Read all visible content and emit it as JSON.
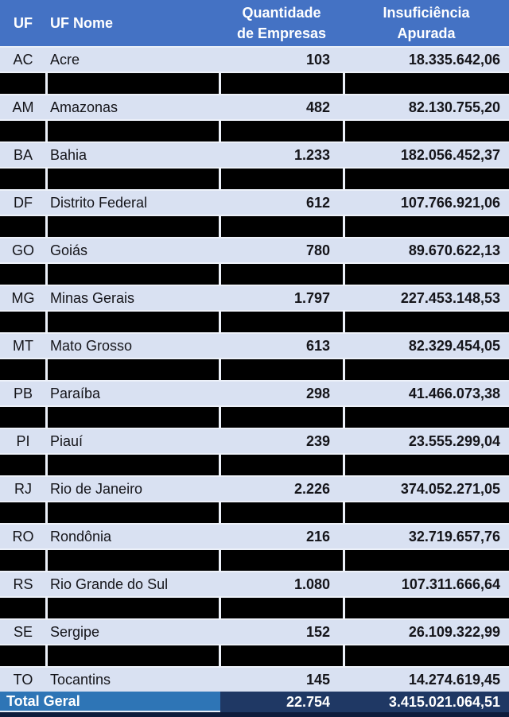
{
  "header": {
    "uf": "UF",
    "uf_nome": "UF Nome",
    "quantidade_line1": "Quantidade",
    "quantidade_line2": "de Empresas",
    "insuficiencia_line1": "Insuficiência",
    "insuficiencia_line2": "Apurada"
  },
  "chart_data": {
    "type": "table",
    "columns": [
      "UF",
      "UF Nome",
      "Quantidade de Empresas",
      "Insuficiência Apurada"
    ],
    "rows": [
      {
        "uf": "AC",
        "uf_nome": "Acre",
        "quantidade": "103",
        "insuficiencia": "18.335.642,06"
      },
      {
        "redacted": true
      },
      {
        "uf": "AM",
        "uf_nome": "Amazonas",
        "quantidade": "482",
        "insuficiencia": "82.130.755,20"
      },
      {
        "redacted": true
      },
      {
        "uf": "BA",
        "uf_nome": "Bahia",
        "quantidade": "1.233",
        "insuficiencia": "182.056.452,37"
      },
      {
        "redacted": true
      },
      {
        "uf": "DF",
        "uf_nome": "Distrito Federal",
        "quantidade": "612",
        "insuficiencia": "107.766.921,06"
      },
      {
        "redacted": true
      },
      {
        "uf": "GO",
        "uf_nome": "Goiás",
        "quantidade": "780",
        "insuficiencia": "89.670.622,13"
      },
      {
        "redacted": true
      },
      {
        "uf": "MG",
        "uf_nome": "Minas Gerais",
        "quantidade": "1.797",
        "insuficiencia": "227.453.148,53"
      },
      {
        "redacted": true
      },
      {
        "uf": "MT",
        "uf_nome": "Mato Grosso",
        "quantidade": "613",
        "insuficiencia": "82.329.454,05"
      },
      {
        "redacted": true
      },
      {
        "uf": "PB",
        "uf_nome": "Paraíba",
        "quantidade": "298",
        "insuficiencia": "41.466.073,38"
      },
      {
        "redacted": true
      },
      {
        "uf": "PI",
        "uf_nome": "Piauí",
        "quantidade": "239",
        "insuficiencia": "23.555.299,04"
      },
      {
        "redacted": true
      },
      {
        "uf": "RJ",
        "uf_nome": "Rio de Janeiro",
        "quantidade": "2.226",
        "insuficiencia": "374.052.271,05"
      },
      {
        "redacted": true
      },
      {
        "uf": "RO",
        "uf_nome": "Rondônia",
        "quantidade": "216",
        "insuficiencia": "32.719.657,76"
      },
      {
        "redacted": true
      },
      {
        "uf": "RS",
        "uf_nome": "Rio Grande do Sul",
        "quantidade": "1.080",
        "insuficiencia": "107.311.666,64"
      },
      {
        "redacted": true
      },
      {
        "uf": "SE",
        "uf_nome": "Sergipe",
        "quantidade": "152",
        "insuficiencia": "26.109.322,99"
      },
      {
        "redacted": true
      },
      {
        "uf": "TO",
        "uf_nome": "Tocantins",
        "quantidade": "145",
        "insuficiencia": "14.274.619,45"
      }
    ],
    "total_row": {
      "label": "Total Geral",
      "quantidade": "22.754",
      "insuficiencia": "3.415.021.064,51"
    }
  },
  "colors": {
    "header_blue": "#4472C4",
    "row_light_blue": "#D9E1F2",
    "redaction_black": "#000000",
    "total_left_blue": "#2E75B6",
    "total_right_navy": "#1F3864",
    "bottom_strip_navy": "#0E1C3C"
  }
}
